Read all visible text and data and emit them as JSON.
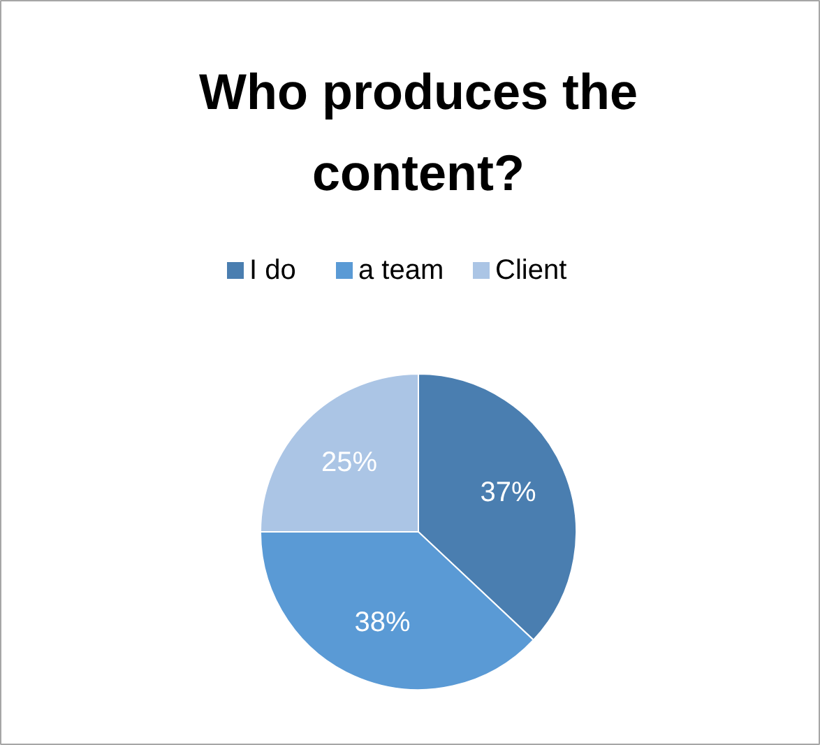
{
  "chart_data": {
    "type": "pie",
    "title": "Who produces the content?",
    "categories": [
      "I do",
      "a team",
      "Client"
    ],
    "values": [
      37,
      38,
      25
    ],
    "colors": [
      "#4a7eb0",
      "#5a9ad5",
      "#abc5e5"
    ],
    "value_labels": [
      "37%",
      "38%",
      "25%"
    ],
    "legend": "top"
  }
}
